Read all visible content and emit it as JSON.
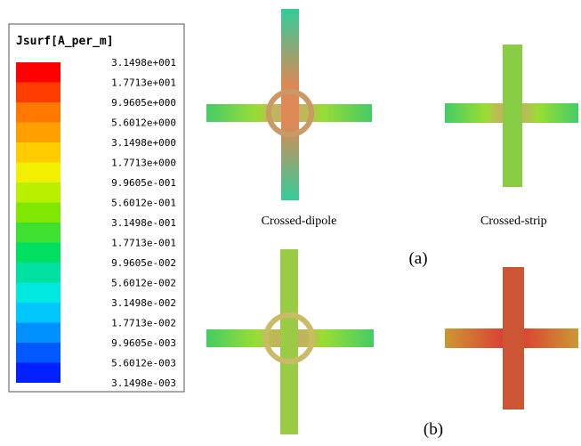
{
  "legend": {
    "title": "Jsurf[A_per_m]",
    "labels": [
      "3.1498e+001",
      "1.7713e+001",
      "9.9605e+000",
      "5.6012e+000",
      "3.1498e+000",
      "1.7713e+000",
      "9.9605e-001",
      "5.6012e-001",
      "3.1498e-001",
      "1.7713e-001",
      "9.9605e-002",
      "5.6012e-002",
      "3.1498e-002",
      "1.7713e-002",
      "9.9605e-003",
      "5.6012e-003",
      "3.1498e-003"
    ],
    "colors": [
      "#ff0000",
      "#ff3c00",
      "#ff7800",
      "#ffa000",
      "#ffcc00",
      "#f0f000",
      "#b8f000",
      "#80e800",
      "#40e030",
      "#00e060",
      "#00e0a0",
      "#00e8e0",
      "#00c8ff",
      "#0090ff",
      "#0058ff",
      "#0020ff"
    ]
  },
  "figure": {
    "captions": [
      "Crossed-dipole",
      "Crossed-strip"
    ],
    "panels": [
      "(a)",
      "(b)"
    ]
  }
}
